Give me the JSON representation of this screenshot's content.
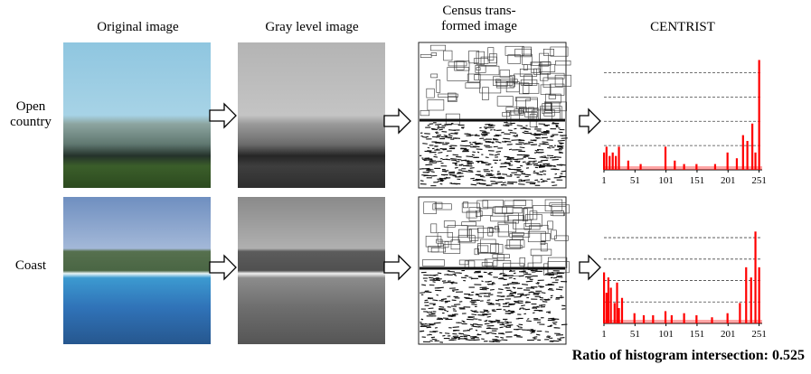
{
  "columns": [
    "Original image",
    "Gray level image",
    "Census trans-\nformed image",
    "CENTRIST"
  ],
  "rows": [
    "Open\ncountry",
    "Coast"
  ],
  "chart_data": [
    {
      "type": "bar",
      "color": "#ff0000",
      "xlim": [
        1,
        256
      ],
      "xticks": [
        1,
        51,
        101,
        151,
        201,
        251
      ],
      "ylim": [
        0,
        100
      ],
      "x": [
        1,
        5,
        10,
        15,
        20,
        25,
        40,
        60,
        100,
        115,
        130,
        150,
        180,
        200,
        215,
        225,
        232,
        240,
        245,
        251
      ],
      "values": [
        15,
        20,
        12,
        15,
        12,
        20,
        8,
        5,
        20,
        8,
        5,
        5,
        5,
        15,
        10,
        30,
        25,
        40,
        15,
        95
      ]
    },
    {
      "type": "bar",
      "color": "#ff0000",
      "xlim": [
        1,
        256
      ],
      "xticks": [
        1,
        51,
        101,
        151,
        201,
        251
      ],
      "ylim": [
        0,
        100
      ],
      "x": [
        1,
        5,
        8,
        12,
        18,
        22,
        25,
        30,
        50,
        65,
        80,
        100,
        110,
        130,
        150,
        175,
        200,
        220,
        230,
        238,
        245,
        251
      ],
      "values": [
        50,
        30,
        45,
        35,
        20,
        40,
        15,
        25,
        10,
        8,
        8,
        12,
        8,
        10,
        8,
        6,
        10,
        20,
        55,
        45,
        90,
        55
      ]
    }
  ],
  "caption": "Ratio of histogram intersection: 0.525"
}
